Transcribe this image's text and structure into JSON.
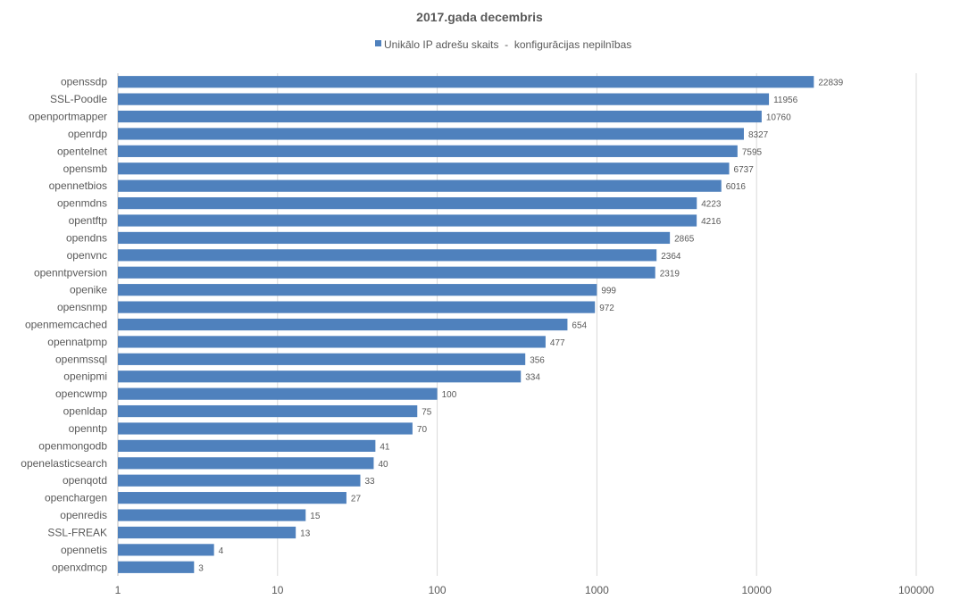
{
  "chart_data": {
    "type": "bar",
    "orientation": "horizontal",
    "title": "2017.gada decembris",
    "legend_position": "top",
    "scale": "log",
    "xlim": [
      1,
      100000
    ],
    "x_ticks": [
      "1",
      "10",
      "100",
      "1000",
      "10000",
      "100000"
    ],
    "grid": true,
    "bar_color": "#4f81bd",
    "categories": [
      "openssdp",
      "SSL-Poodle",
      "openportmapper",
      "openrdp",
      "opentelnet",
      "opensmb",
      "opennetbios",
      "openmdns",
      "opentftp",
      "opendns",
      "openvnc",
      "openntpversion",
      "openike",
      "opensnmp",
      "openmemcached",
      "opennatpmp",
      "openmssql",
      "openipmi",
      "opencwmp",
      "openldap",
      "openntp",
      "openmongodb",
      "openelasticsearch",
      "openqotd",
      "openchargen",
      "openredis",
      "SSL-FREAK",
      "opennetis",
      "openxdmcp"
    ],
    "series": [
      {
        "name": "Unikālo IP adrešu skaits  -  konfigurācijas nepilnības",
        "values": [
          22839,
          11956,
          10760,
          8327,
          7595,
          6737,
          6016,
          4223,
          4216,
          2865,
          2364,
          2319,
          999,
          972,
          654,
          477,
          356,
          334,
          100,
          75,
          70,
          41,
          40,
          33,
          27,
          15,
          13,
          4,
          3
        ]
      }
    ]
  }
}
